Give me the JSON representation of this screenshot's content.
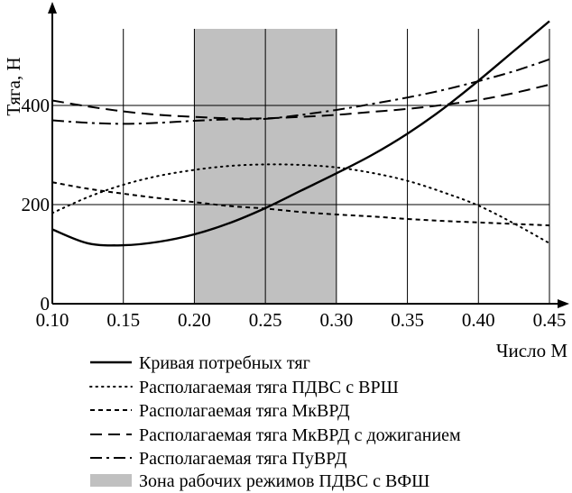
{
  "chart_data": {
    "type": "line",
    "ylabel": "Тяга, Н",
    "xlabel": "Число М",
    "xlim": [
      0.1,
      0.45
    ],
    "ylim": [
      0,
      580
    ],
    "xticks": [
      "0.10",
      "0.15",
      "0.20",
      "0.25",
      "0.30",
      "0.35",
      "0.40",
      "0.45"
    ],
    "yticks": [
      "0",
      "200",
      "400"
    ],
    "grid": "vertical lines at x ticks, horizontal lines at y ticks",
    "shaded_zone": {
      "label": "Зона рабочих режимов ПДВС с ВФШ",
      "x_range": [
        0.2,
        0.3
      ],
      "color": "#c0c0c0"
    },
    "x": [
      0.1,
      0.125,
      0.15,
      0.175,
      0.2,
      0.225,
      0.25,
      0.275,
      0.3,
      0.325,
      0.35,
      0.375,
      0.4,
      0.425,
      0.45
    ],
    "series": [
      {
        "name": "Кривая потребных тяг",
        "style": "solid",
        "values": [
          150,
          122,
          118,
          125,
          140,
          163,
          193,
          228,
          263,
          300,
          343,
          393,
          450,
          510,
          570
        ]
      },
      {
        "name": "Располагаемая тяга ПДВС с ВРШ",
        "style": "dotted",
        "values": [
          183,
          215,
          240,
          258,
          270,
          278,
          281,
          280,
          275,
          264,
          248,
          225,
          198,
          162,
          122
        ]
      },
      {
        "name": "Располагаемая тяга МкВРД",
        "style": "dashed-short",
        "values": [
          245,
          232,
          222,
          213,
          205,
          197,
          192,
          185,
          180,
          176,
          171,
          167,
          164,
          161,
          158
        ]
      },
      {
        "name": "Располагаемая тяга МкВРД с дожиганием",
        "style": "dashed-long",
        "values": [
          410,
          398,
          388,
          381,
          377,
          374,
          374,
          377,
          381,
          387,
          393,
          401,
          411,
          425,
          442
        ]
      },
      {
        "name": "Располагаемая тяга ПуВРД",
        "style": "dash-dot",
        "values": [
          370,
          365,
          363,
          365,
          369,
          372,
          373,
          381,
          391,
          403,
          416,
          431,
          449,
          469,
          493
        ]
      }
    ],
    "legend_position": "bottom-left"
  }
}
